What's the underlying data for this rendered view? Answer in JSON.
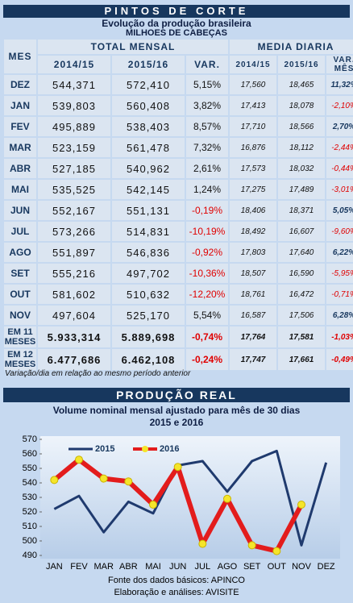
{
  "header": {
    "title": "PINTOS DE CORTE",
    "subtitle": "Evolução da produção brasileira",
    "units": "MILHOES DE CABEÇAS"
  },
  "table": {
    "group_headers": [
      "MES",
      "TOTAL MENSAL",
      "MEDIA DIARIA"
    ],
    "columns": [
      "2014/15",
      "2015/16",
      "VAR.",
      "2014/15",
      "2015/16",
      "VAR. MÊS"
    ],
    "rows": [
      [
        "DEZ",
        "544,371",
        "572,410",
        "5,15%",
        "17,560",
        "18,465",
        "11,32%"
      ],
      [
        "JAN",
        "539,803",
        "560,408",
        "3,82%",
        "17,413",
        "18,078",
        "-2,10%"
      ],
      [
        "FEV",
        "495,889",
        "538,403",
        "8,57%",
        "17,710",
        "18,566",
        "2,70%"
      ],
      [
        "MAR",
        "523,159",
        "561,478",
        "7,32%",
        "16,876",
        "18,112",
        "-2,44%"
      ],
      [
        "ABR",
        "527,185",
        "540,962",
        "2,61%",
        "17,573",
        "18,032",
        "-0,44%"
      ],
      [
        "MAI",
        "535,525",
        "542,145",
        "1,24%",
        "17,275",
        "17,489",
        "-3,01%"
      ],
      [
        "JUN",
        "552,167",
        "551,131",
        "-0,19%",
        "18,406",
        "18,371",
        "5,05%"
      ],
      [
        "JUL",
        "573,266",
        "514,831",
        "-10,19%",
        "18,492",
        "16,607",
        "-9,60%"
      ],
      [
        "AGO",
        "551,897",
        "546,836",
        "-0,92%",
        "17,803",
        "17,640",
        "6,22%"
      ],
      [
        "SET",
        "555,216",
        "497,702",
        "-10,36%",
        "18,507",
        "16,590",
        "-5,95%"
      ],
      [
        "OUT",
        "581,602",
        "510,632",
        "-12,20%",
        "18,761",
        "16,472",
        "-0,71%"
      ],
      [
        "NOV",
        "497,604",
        "525,170",
        "5,54%",
        "16,587",
        "17,506",
        "6,28%"
      ],
      [
        "EM 11 MESES",
        "5.933,314",
        "5.889,698",
        "-0,74%",
        "17,764",
        "17,581",
        "-1,03%"
      ],
      [
        "EM 12 MESES",
        "6.477,686",
        "6.462,108",
        "-0,24%",
        "17,747",
        "17,661",
        "-0,49%"
      ]
    ],
    "note": "Variação/dia em relação ao mesmo período anterior"
  },
  "chart_data": {
    "type": "line",
    "title": "PRODUÇÃO REAL",
    "subtitle": "Volume nominal mensal ajustado para mês de 30 dias",
    "subtitle2": "2015 e 2016",
    "categories": [
      "JAN",
      "FEV",
      "MAR",
      "ABR",
      "MAI",
      "JUN",
      "JUL",
      "AGO",
      "SET",
      "OUT",
      "NOV",
      "DEZ"
    ],
    "series": [
      {
        "name": "2015",
        "color": "#1f3a6e",
        "values": [
          522,
          531,
          506,
          527,
          519,
          552,
          555,
          534,
          555,
          562,
          497,
          554
        ]
      },
      {
        "name": "2016",
        "color": "#e31c1c",
        "marker_color": "#f5e52a",
        "values": [
          542,
          556,
          543,
          541,
          525,
          551,
          498,
          529,
          497,
          493,
          525,
          null
        ]
      }
    ],
    "ylim": [
      490,
      570
    ],
    "yticks": [
      490,
      500,
      510,
      520,
      530,
      540,
      550,
      560,
      570
    ],
    "grid": false
  },
  "footer": {
    "source": "Fonte dos dados básicos: APINCO",
    "credit": "Elaboração e análises: AVISITE"
  }
}
